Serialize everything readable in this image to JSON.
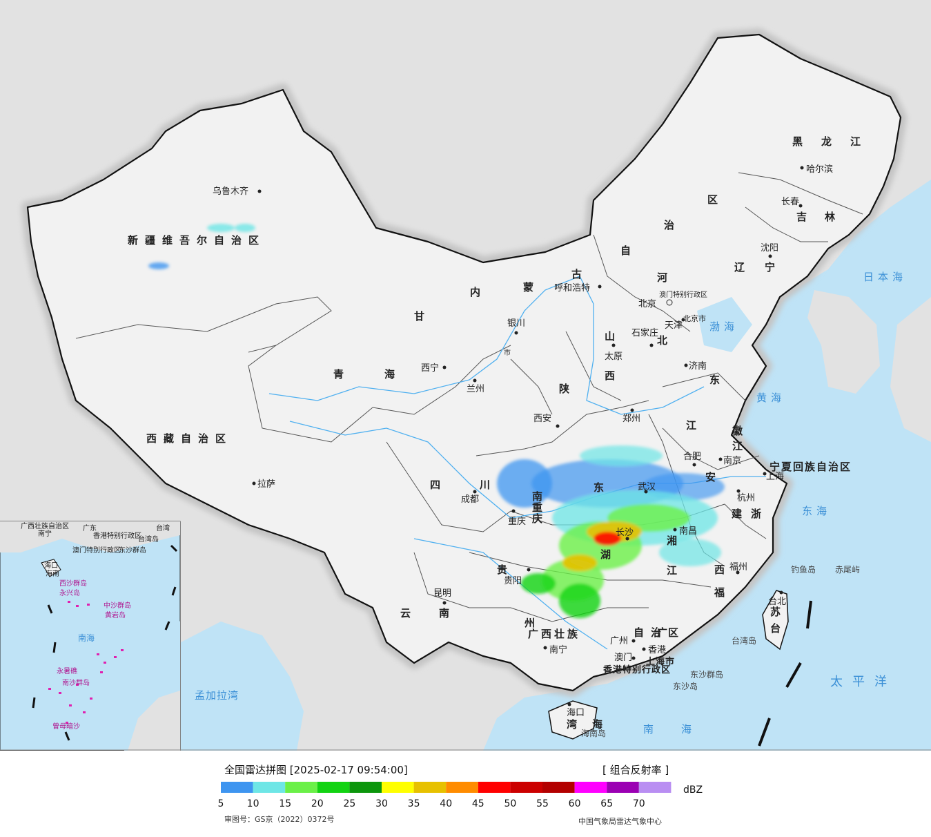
{
  "legend": {
    "title": "全国雷达拼图 [2025-02-17 09:54:00]",
    "product": "[ 组合反射率 ]",
    "unit": "dBZ",
    "colors": [
      "#3e95f0",
      "#6ee6e6",
      "#6bf048",
      "#12d312",
      "#0c960c",
      "#ffff00",
      "#e7c100",
      "#ff8c00",
      "#ff0000",
      "#cc0000",
      "#b30000",
      "#ff00ff",
      "#9b00b3",
      "#b98ef2"
    ],
    "ticks": [
      "5",
      "10",
      "15",
      "20",
      "25",
      "30",
      "35",
      "40",
      "45",
      "50",
      "55",
      "60",
      "65",
      "70"
    ],
    "review_no": "审图号：GS京（2022）0372号",
    "credit": "中国气象局雷达气象中心"
  },
  "map": {
    "regions": [
      "新疆维吾尔自治区",
      "西藏自治区",
      "青",
      "海",
      "甘",
      "内",
      "蒙",
      "古",
      "自",
      "治",
      "区",
      "黑",
      "龙",
      "江",
      "吉",
      "林",
      "辽",
      "宁",
      "河",
      "北",
      "山",
      "西",
      "东",
      "陕",
      "四",
      "川",
      "云",
      "南",
      "贵",
      "州",
      "广西壮族",
      "自治区",
      "广",
      "东",
      "湖",
      "湘",
      "江",
      "西",
      "福",
      "建",
      "浙",
      "江",
      "安",
      "徽",
      "江",
      "苏",
      "台",
      "湾",
      "海",
      "南",
      "重",
      "庆",
      "市",
      "宁夏回族自治区",
      "上海市",
      "香港特别行政区",
      "澳门特别行政区",
      "北京市",
      "天津"
    ],
    "cities": [
      "乌鲁木齐",
      "拉萨",
      "西宁",
      "兰州",
      "银川",
      "呼和浩特",
      "北京",
      "天津",
      "石家庄",
      "太原",
      "济南",
      "西安",
      "郑州",
      "合肥",
      "南京",
      "上海",
      "杭州",
      "武汉",
      "成都",
      "重庆",
      "贵阳",
      "昆明",
      "南昌",
      "长沙",
      "福州",
      "南宁",
      "广州",
      "香港",
      "澳门",
      "海口",
      "台北",
      "哈尔滨",
      "长春",
      "沈阳"
    ],
    "seas": [
      "日本海",
      "渤海",
      "黄海",
      "东海",
      "南海",
      "太平洋",
      "孟加拉湾"
    ],
    "islands": [
      "钓鱼岛",
      "赤尾屿",
      "台湾岛",
      "东沙群岛",
      "东沙岛",
      "海南岛"
    ],
    "inset": {
      "labels": [
        "广西壮族自治区",
        "南宁",
        "广东",
        "香港特别行政区",
        "澳门特别行政区",
        "台湾",
        "台湾岛",
        "东沙群岛",
        "海口",
        "海南",
        "西沙群岛",
        "永兴岛",
        "中沙群岛",
        "黄岩岛",
        "南海",
        "永暑礁",
        "南沙群岛",
        "曾母暗沙"
      ]
    }
  }
}
